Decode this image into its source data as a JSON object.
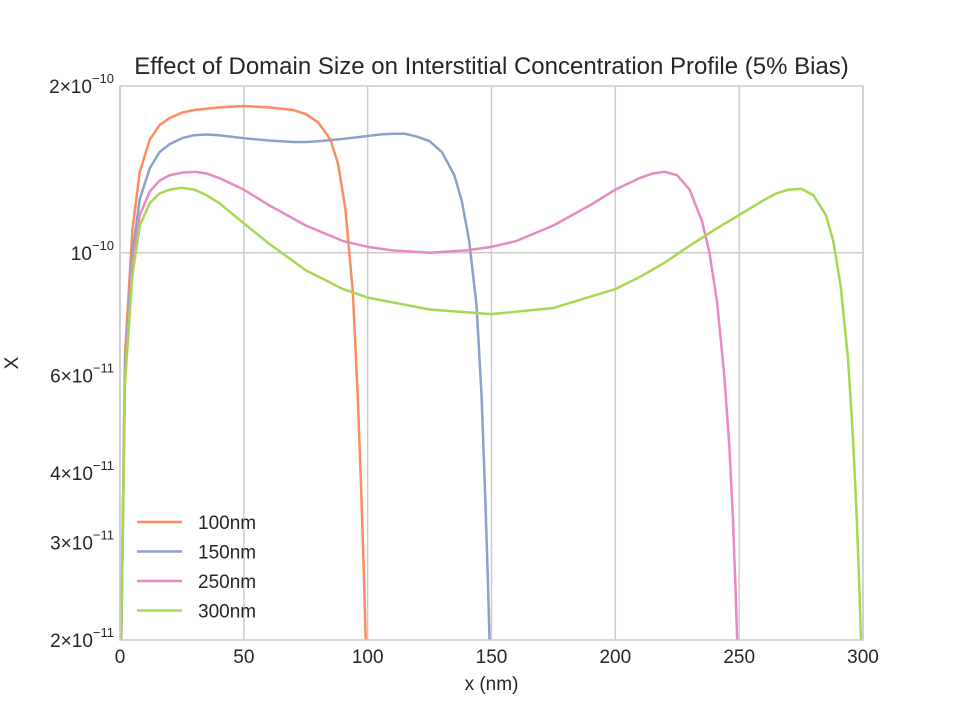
{
  "chart_data": {
    "type": "line",
    "title": "Effect of Domain Size on Interstitial Concentration Profile (5% Bias)",
    "xlabel": "x (nm)",
    "ylabel": "X",
    "xlim": [
      0,
      300
    ],
    "ylim": [
      2e-11,
      2e-10
    ],
    "yscale": "log",
    "grid": true,
    "legend_position": "lower-left",
    "x_ticks": [
      0,
      50,
      100,
      150,
      200,
      250,
      300
    ],
    "x_tick_labels": [
      "0",
      "50",
      "100",
      "150",
      "200",
      "250",
      "300"
    ],
    "y_ticks": [
      {
        "value": 2e-11,
        "mantissa": "2",
        "exp": "−11"
      },
      {
        "value": 3e-11,
        "mantissa": "3",
        "exp": "−11"
      },
      {
        "value": 4e-11,
        "mantissa": "4",
        "exp": "−11"
      },
      {
        "value": 6e-11,
        "mantissa": "6",
        "exp": "−11"
      },
      {
        "value": 1e-10,
        "mantissa": "",
        "exp": "−10"
      },
      {
        "value": 2e-10,
        "mantissa": "2",
        "exp": "−10"
      }
    ],
    "series": [
      {
        "name": "100nm",
        "color": "#fc8d62",
        "x": [
          0.5,
          2,
          5,
          8,
          12,
          16,
          20,
          25,
          30,
          40,
          50,
          60,
          70,
          75,
          80,
          85,
          88,
          91,
          94,
          96,
          97.5,
          98.5,
          99.2
        ],
        "y": [
          2e-11,
          6.5e-11,
          1.1e-10,
          1.4e-10,
          1.6e-10,
          1.7e-10,
          1.75e-10,
          1.79e-10,
          1.81e-10,
          1.83e-10,
          1.84e-10,
          1.83e-10,
          1.81e-10,
          1.78e-10,
          1.72e-10,
          1.6e-10,
          1.45e-10,
          1.2e-10,
          8.5e-11,
          5.5e-11,
          3.6e-11,
          2.6e-11,
          2e-11
        ]
      },
      {
        "name": "150nm",
        "color": "#8da0cb",
        "x": [
          0.5,
          2,
          5,
          8,
          12,
          16,
          20,
          25,
          30,
          35,
          40,
          50,
          60,
          70,
          75,
          80,
          90,
          100,
          105,
          110,
          115,
          120,
          125,
          130,
          135,
          138,
          141,
          144,
          146,
          147.5,
          148.5,
          149.2
        ],
        "y": [
          2e-11,
          6.2e-11,
          1e-10,
          1.25e-10,
          1.42e-10,
          1.52e-10,
          1.57e-10,
          1.61e-10,
          1.63e-10,
          1.635e-10,
          1.63e-10,
          1.61e-10,
          1.595e-10,
          1.585e-10,
          1.585e-10,
          1.59e-10,
          1.605e-10,
          1.625e-10,
          1.635e-10,
          1.64e-10,
          1.64e-10,
          1.62e-10,
          1.59e-10,
          1.52e-10,
          1.38e-10,
          1.24e-10,
          1.05e-10,
          8e-11,
          5.5e-11,
          3.6e-11,
          2.6e-11,
          2e-11
        ]
      },
      {
        "name": "250nm",
        "color": "#e78ac3",
        "x": [
          0.5,
          2,
          5,
          8,
          12,
          16,
          20,
          25,
          30,
          35,
          40,
          50,
          60,
          75,
          90,
          100,
          110,
          125,
          140,
          150,
          160,
          175,
          190,
          200,
          210,
          215,
          220,
          225,
          230,
          235,
          238,
          241,
          244,
          246,
          247.5,
          248.5,
          249.2
        ],
        "y": [
          2e-11,
          6e-11,
          9.5e-11,
          1.17e-10,
          1.29e-10,
          1.35e-10,
          1.38e-10,
          1.395e-10,
          1.4e-10,
          1.39e-10,
          1.365e-10,
          1.3e-10,
          1.22e-10,
          1.12e-10,
          1.05e-10,
          1.025e-10,
          1.01e-10,
          1e-10,
          1.01e-10,
          1.025e-10,
          1.05e-10,
          1.12e-10,
          1.22e-10,
          1.3e-10,
          1.365e-10,
          1.39e-10,
          1.4e-10,
          1.38e-10,
          1.3e-10,
          1.14e-10,
          1e-10,
          8.2e-11,
          6e-11,
          4.5e-11,
          3.3e-11,
          2.5e-11,
          2e-11
        ]
      },
      {
        "name": "300nm",
        "color": "#a6d854",
        "x": [
          0.5,
          2,
          5,
          8,
          12,
          16,
          20,
          25,
          30,
          35,
          40,
          50,
          60,
          75,
          90,
          100,
          125,
          150,
          175,
          200,
          210,
          220,
          230,
          240,
          250,
          260,
          265,
          270,
          275,
          280,
          285,
          288,
          291,
          294,
          296,
          297.5,
          298.5,
          299.2
        ],
        "y": [
          2e-11,
          5.8e-11,
          9.1e-11,
          1.12e-10,
          1.23e-10,
          1.28e-10,
          1.3e-10,
          1.31e-10,
          1.3e-10,
          1.27e-10,
          1.23e-10,
          1.13e-10,
          1.04e-10,
          9.3e-11,
          8.6e-11,
          8.3e-11,
          7.9e-11,
          7.75e-11,
          7.95e-11,
          8.6e-11,
          9.05e-11,
          9.6e-11,
          1.03e-10,
          1.1e-10,
          1.17e-10,
          1.245e-10,
          1.28e-10,
          1.3e-10,
          1.305e-10,
          1.27e-10,
          1.17e-10,
          1.05e-10,
          8.7e-11,
          6.4e-11,
          4.6e-11,
          3.3e-11,
          2.5e-11,
          2e-11
        ]
      }
    ]
  }
}
